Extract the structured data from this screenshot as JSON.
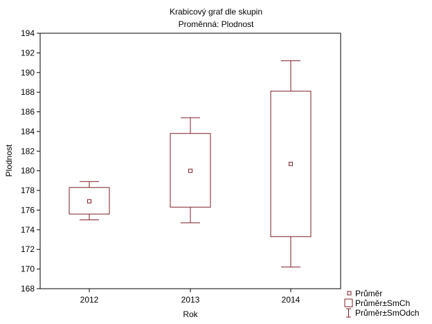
{
  "chart_data": {
    "type": "box",
    "title": "Krabicový graf dle skupin",
    "subtitle": "Proměnná: Plodnost",
    "xlabel": "Rok",
    "ylabel": "Plodnost",
    "ylim": [
      168,
      194
    ],
    "yticks": [
      168,
      170,
      172,
      174,
      176,
      178,
      180,
      182,
      184,
      186,
      188,
      190,
      192,
      194
    ],
    "categories": [
      "2012",
      "2013",
      "2014"
    ],
    "boxes": [
      {
        "category": "2012",
        "mean": 176.9,
        "box_low": 175.6,
        "box_high": 178.3,
        "whisker_low": 175.0,
        "whisker_high": 178.9
      },
      {
        "category": "2013",
        "mean": 180.0,
        "box_low": 176.3,
        "box_high": 183.8,
        "whisker_low": 174.7,
        "whisker_high": 185.4
      },
      {
        "category": "2014",
        "mean": 180.7,
        "box_low": 173.3,
        "box_high": 188.1,
        "whisker_low": 170.2,
        "whisker_high": 191.2
      }
    ],
    "legend": {
      "placement": "bottom-right",
      "items": [
        {
          "label": "Průměr",
          "marker": "small-square"
        },
        {
          "label": "Průměr±SmCh",
          "marker": "box"
        },
        {
          "label": "Průměr±SmOdch",
          "marker": "whisker"
        }
      ]
    },
    "grid": false,
    "colors": {
      "box": "#7a1c22",
      "axis": "#000000",
      "background": "#ffffff"
    }
  }
}
